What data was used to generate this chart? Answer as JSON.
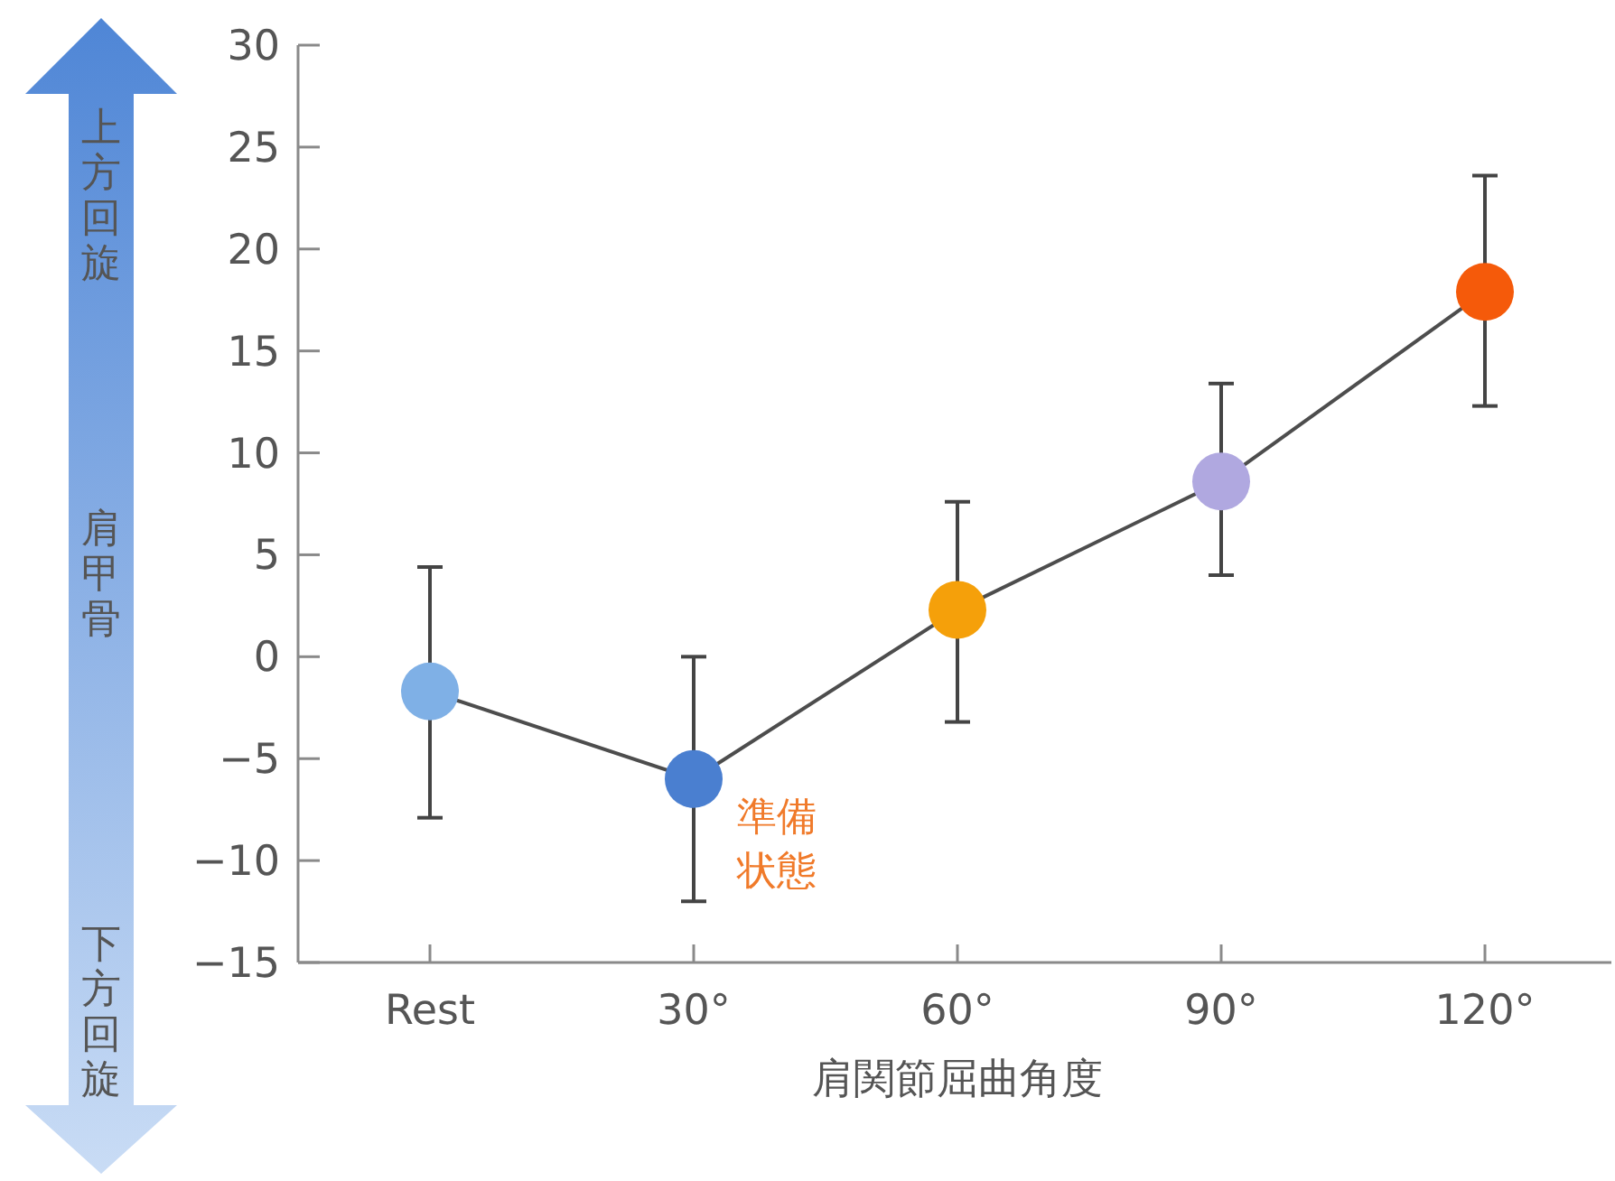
{
  "chart_data": {
    "type": "line",
    "xlabel": "肩関節屈曲角度",
    "ylabel": "肩甲骨",
    "categories": [
      "Rest",
      "30°",
      "60°",
      "90°",
      "120°"
    ],
    "series": [
      {
        "color": "#4d4d4d",
        "colors": [
          "#7fb0e6",
          "#4a7fd0",
          "#f5a00a",
          "#b0a8e0",
          "#f55a0a"
        ],
        "values": [
          -1.7,
          -6.0,
          2.3,
          8.6,
          17.9
        ],
        "errors": [
          [
            -7.9,
            4.4
          ],
          [
            -12.0,
            0
          ],
          [
            -3.2,
            7.6
          ],
          [
            4.0,
            13.4
          ],
          [
            12.3,
            23.6
          ]
        ]
      }
    ],
    "marker": "circle",
    "grid": false,
    "ylim": [
      -15,
      30
    ],
    "yticks": [
      {
        "value": -15,
        "label": "−15"
      },
      {
        "value": -10,
        "label": "−10"
      },
      {
        "value": -5,
        "label": "−5"
      },
      0,
      5,
      10,
      15,
      20,
      25,
      30
    ],
    "annotations": [
      "上方回旋",
      "下方回旋",
      {
        "text": "準備状態",
        "x": "30°",
        "y": -6.0
      }
    ]
  }
}
